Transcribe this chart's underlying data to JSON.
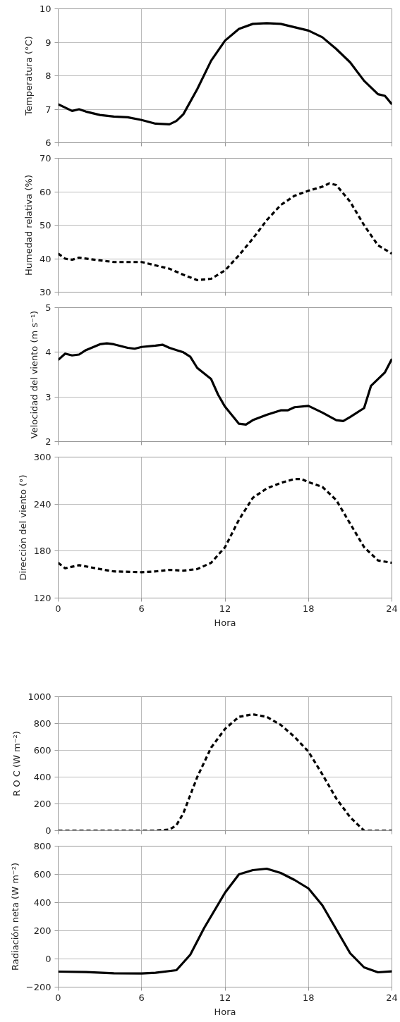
{
  "chart_data": [
    {
      "type": "line",
      "ylabel": "Temperatura (°C)",
      "xlim": [
        0,
        24
      ],
      "xticks": [
        0,
        6,
        12,
        18,
        24
      ],
      "ylim": [
        6,
        10
      ],
      "yticks": [
        6,
        7,
        8,
        9,
        10
      ],
      "grid": true,
      "tick_labels": "y",
      "line_style": "solid",
      "series": [
        {
          "color": "#000000",
          "x": [
            0,
            0.5,
            1,
            1.5,
            2,
            3,
            4,
            5,
            6,
            7,
            8,
            8.5,
            9,
            10,
            11,
            12,
            13,
            14,
            15,
            16,
            17,
            18,
            19,
            20,
            21,
            22,
            23,
            23.5,
            24
          ],
          "values": [
            7.15,
            7.05,
            6.95,
            7.0,
            6.93,
            6.83,
            6.78,
            6.76,
            6.68,
            6.57,
            6.55,
            6.65,
            6.85,
            7.6,
            8.45,
            9.05,
            9.4,
            9.55,
            9.57,
            9.55,
            9.45,
            9.35,
            9.15,
            8.8,
            8.4,
            7.85,
            7.45,
            7.4,
            7.15
          ]
        }
      ]
    },
    {
      "type": "line",
      "ylabel": "Humedad relativa (%)",
      "xlim": [
        0,
        24
      ],
      "xticks": [
        0,
        6,
        12,
        18,
        24
      ],
      "ylim": [
        30,
        70
      ],
      "yticks": [
        30,
        40,
        50,
        60,
        70
      ],
      "grid": true,
      "tick_labels": "y",
      "line_style": "dashed",
      "series": [
        {
          "color": "#000000",
          "x": [
            0,
            0.5,
            1,
            1.5,
            3,
            4,
            5,
            6,
            7,
            8,
            9,
            10,
            11,
            12,
            13,
            14,
            15,
            16,
            17,
            18,
            19,
            19.5,
            20,
            21,
            22,
            23,
            24
          ],
          "values": [
            41.5,
            40,
            39.7,
            40.3,
            39.5,
            39,
            39,
            39,
            38,
            37,
            35.2,
            33.6,
            34,
            36.5,
            41,
            46,
            51.5,
            56,
            58.8,
            60.3,
            61.5,
            62.5,
            62,
            57,
            50,
            44,
            41.5
          ]
        }
      ]
    },
    {
      "type": "line",
      "ylabel": "Velocidad del viento (m s⁻¹)",
      "xlim": [
        0,
        24
      ],
      "xticks": [
        0,
        6,
        12,
        18,
        24
      ],
      "ylim": [
        2,
        5
      ],
      "yticks": [
        2,
        3,
        4,
        5
      ],
      "grid": true,
      "tick_labels": "y",
      "line_style": "solid",
      "series": [
        {
          "color": "#000000",
          "x": [
            0,
            0.5,
            1,
            1.5,
            2,
            3,
            3.5,
            4,
            5,
            5.5,
            6,
            7,
            7.5,
            8,
            9,
            9.5,
            10,
            11,
            11.5,
            12,
            13,
            13.5,
            14,
            15,
            16,
            16.5,
            17,
            18,
            19,
            20,
            20.5,
            21,
            22,
            22.5,
            23.5,
            24
          ],
          "values": [
            3.83,
            3.97,
            3.93,
            3.95,
            4.05,
            4.18,
            4.2,
            4.18,
            4.1,
            4.08,
            4.12,
            4.15,
            4.17,
            4.1,
            4.0,
            3.9,
            3.65,
            3.4,
            3.05,
            2.78,
            2.4,
            2.38,
            2.48,
            2.6,
            2.7,
            2.7,
            2.77,
            2.8,
            2.65,
            2.48,
            2.46,
            2.55,
            2.75,
            3.25,
            3.55,
            3.85
          ]
        }
      ]
    },
    {
      "type": "line",
      "ylabel": "Dirección del viento (°)",
      "xlabel": "Hora",
      "xlim": [
        0,
        24
      ],
      "xticks": [
        0,
        6,
        12,
        18,
        24
      ],
      "ylim": [
        120,
        300
      ],
      "yticks": [
        120,
        180,
        240,
        300
      ],
      "grid": true,
      "line_style": "dashed",
      "series": [
        {
          "color": "#000000",
          "x": [
            0,
            0.5,
            1.5,
            3,
            4,
            6,
            7,
            8,
            9,
            10,
            11,
            12,
            13,
            14,
            15,
            16,
            17,
            17.5,
            18,
            19,
            20,
            21,
            22,
            23,
            24
          ],
          "values": [
            165,
            158,
            162,
            157,
            154,
            153,
            154,
            156,
            155,
            157,
            165,
            185,
            220,
            248,
            260,
            267,
            272,
            272,
            268,
            262,
            245,
            215,
            185,
            168,
            165
          ]
        }
      ]
    },
    {
      "type": "line",
      "ylabel": "R O C (W m⁻²)",
      "xlim": [
        0,
        24
      ],
      "xticks": [
        0,
        6,
        12,
        18,
        24
      ],
      "ylim": [
        0,
        1000
      ],
      "yticks": [
        0,
        200,
        400,
        600,
        800,
        1000
      ],
      "grid": true,
      "tick_labels": "y",
      "line_style": "dashed",
      "series": [
        {
          "color": "#000000",
          "x": [
            0,
            2,
            4,
            6,
            7,
            8,
            8.5,
            9,
            10,
            11,
            12,
            13,
            14,
            15,
            16,
            17,
            18,
            19,
            20,
            21,
            22,
            23,
            24
          ],
          "values": [
            0,
            0,
            0,
            0,
            0,
            8,
            40,
            130,
            400,
            620,
            760,
            850,
            868,
            850,
            790,
            700,
            590,
            420,
            240,
            100,
            0,
            0,
            0
          ]
        }
      ]
    },
    {
      "type": "line",
      "ylabel": "Radiación neta (W m⁻²)",
      "xlabel": "Hora",
      "xlim": [
        0,
        24
      ],
      "xticks": [
        0,
        6,
        12,
        18,
        24
      ],
      "ylim": [
        -200,
        800
      ],
      "yticks": [
        -200,
        0,
        200,
        400,
        600,
        800
      ],
      "grid": true,
      "line_style": "solid",
      "series": [
        {
          "color": "#000000",
          "x": [
            0,
            2,
            4,
            6,
            7,
            8.5,
            9.5,
            10.5,
            12,
            13,
            14,
            15,
            16,
            17,
            18,
            19,
            20,
            21,
            22,
            23,
            24
          ],
          "values": [
            -90,
            -93,
            -102,
            -103,
            -98,
            -80,
            30,
            220,
            470,
            600,
            630,
            640,
            610,
            560,
            500,
            380,
            210,
            40,
            -60,
            -95,
            -88
          ]
        }
      ]
    }
  ]
}
